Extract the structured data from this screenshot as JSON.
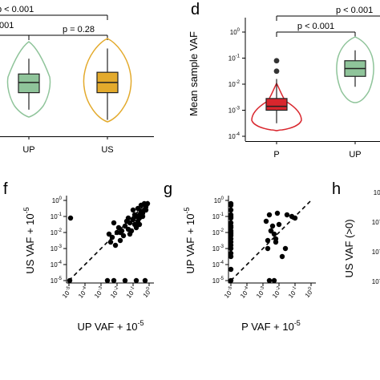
{
  "panels": {
    "c": {
      "categories": [
        "UP",
        "US"
      ],
      "pvalues": [
        "p < 0.001",
        ".001",
        "p = 0.28"
      ]
    },
    "d": {
      "label": "d",
      "ylabel": "Mean sample VAF",
      "categories": [
        "P",
        "UP"
      ],
      "pvalues": [
        "p < 0.001",
        "p < 0.001"
      ],
      "yticks": [
        "0",
        "-1",
        "-2",
        "-3",
        "-4"
      ]
    },
    "f": {
      "label": "f",
      "ylabel_main": "US VAF + 10",
      "ylabel_exp": "-5",
      "xlabel_main": "UP VAF + 10",
      "xlabel_exp": "-5"
    },
    "g": {
      "label": "g",
      "ylabel_main": "UP VAF + 10",
      "ylabel_exp": "-5",
      "xlabel_main": "P VAF + 10",
      "xlabel_exp": "-5"
    },
    "h": {
      "label": "h",
      "ylabel": "US VAF (>0)"
    }
  },
  "colors": {
    "up": "#8fc49a",
    "us": "#e3aa2c",
    "p": "#d9262d",
    "up_outline": "#5aa86a",
    "us_outline": "#d49c1c",
    "p_outline": "#c0262c"
  },
  "chart_data": [
    {
      "type": "box",
      "panel": "c",
      "categories": [
        "UP",
        "US"
      ],
      "series": [
        {
          "values": [
            {
              "whisker_low": -2.8,
              "q1": -2.3,
              "median": -2.0,
              "q3": -1.75,
              "whisker_high": -1.3
            }
          ]
        },
        {
          "values": [
            {
              "whisker_low": -3.1,
              "q1": -2.3,
              "median": -2.0,
              "q3": -1.7,
              "whisker_high": -1.0
            }
          ]
        }
      ],
      "annotations": [
        "p < 0.001",
        "p = 0.28"
      ]
    },
    {
      "type": "box",
      "panel": "d",
      "ylabel": "Mean sample VAF",
      "scale": "log10",
      "ylim": [
        -4.2,
        0.3
      ],
      "categories": [
        "P",
        "UP"
      ],
      "series": [
        {
          "values": [
            {
              "whisker_low": -3.5,
              "q1": -3.0,
              "median": -2.85,
              "q3": -2.55,
              "whisker_high": -1.8,
              "outliers": [
                -1.1,
                -1.5
              ]
            }
          ]
        },
        {
          "values": [
            {
              "whisker_low": -2.1,
              "q1": -1.7,
              "median": -1.4,
              "q3": -1.1,
              "whisker_high": -0.7
            }
          ]
        }
      ],
      "annotations": [
        "p < 0.001",
        "p < 0.001"
      ]
    },
    {
      "type": "scatter",
      "panel": "f",
      "scale": "log10",
      "xlim": [
        -5,
        0
      ],
      "ylim": [
        -5,
        0
      ],
      "x": [
        -4.9,
        -4.95,
        -2.6,
        -2.2,
        -1.5,
        -0.8,
        -0.25,
        -2.5,
        -2.3,
        -2.0,
        -1.8,
        -1.7,
        -1.5,
        -1.4,
        -1.3,
        -1.2,
        -1.0,
        -0.9,
        -0.8,
        -0.7,
        -0.6,
        -0.5,
        -0.4,
        -0.3,
        -0.2,
        -2.4,
        -2.1,
        -1.9,
        -1.6,
        -1.1,
        -1.0,
        -0.7,
        -0.6,
        -0.5,
        -0.3,
        -0.2,
        -0.1,
        -1.8,
        -1.3,
        -0.9,
        -0.4,
        -2.2,
        -1.2,
        -0.8,
        -0.6
      ],
      "y": [
        -1.1,
        -5.0,
        -5.0,
        -5.0,
        -5.0,
        -5.0,
        -5.0,
        -2.1,
        -2.3,
        -2.0,
        -2.5,
        -1.9,
        -1.6,
        -1.3,
        -1.8,
        -1.4,
        -1.2,
        -1.5,
        -1.0,
        -1.3,
        -0.9,
        -0.7,
        -0.8,
        -0.6,
        -0.4,
        -2.6,
        -2.8,
        -1.7,
        -2.2,
        -1.9,
        -0.6,
        -0.5,
        -1.1,
        -0.3,
        -0.2,
        -0.6,
        -0.2,
        -2.0,
        -1.1,
        -0.9,
        -1.0,
        -1.4,
        -2.1,
        -1.7,
        -1.5
      ],
      "ylabel": "US VAF + 10^-5",
      "xlabel": "UP VAF + 10^-5"
    },
    {
      "type": "scatter",
      "panel": "g",
      "scale": "log10",
      "xlim": [
        -5,
        0
      ],
      "ylim": [
        -5,
        0
      ],
      "x": [
        -5.0,
        -5.0,
        -5.0,
        -5.0,
        -5.0,
        -5.0,
        -5.0,
        -5.0,
        -5.0,
        -5.0,
        -5.0,
        -5.0,
        -5.0,
        -5.0,
        -5.0,
        -5.0,
        -5.0,
        -5.0,
        -5.0,
        -5.0,
        -2.8,
        -2.6,
        -2.4,
        -2.3,
        -2.1,
        -1.5,
        -1.0,
        -2.7,
        -2.2,
        -2.5,
        -2.0,
        -1.8,
        -1.6,
        -1.2,
        -2.6,
        -2.3,
        -5.0,
        -2.7,
        -2.5,
        -2.2
      ],
      "y": [
        -0.3,
        -0.6,
        -0.9,
        -1.1,
        -1.4,
        -1.6,
        -1.9,
        -2.1,
        -2.4,
        -2.6,
        -2.8,
        -3.0,
        -3.3,
        -3.5,
        -5.0,
        -0.2,
        -1.0,
        -2.0,
        -1.7,
        -2.2,
        -1.3,
        -0.9,
        -1.6,
        -2.1,
        -0.8,
        -0.9,
        -1.1,
        -2.5,
        -2.6,
        -1.9,
        -1.5,
        -3.5,
        -3.0,
        -1.0,
        -5.0,
        -5.0,
        -4.3,
        -3.0,
        -1.9,
        -2.4
      ],
      "ylabel": "UP VAF + 10^-5",
      "xlabel": "P VAF + 10^-5"
    }
  ]
}
